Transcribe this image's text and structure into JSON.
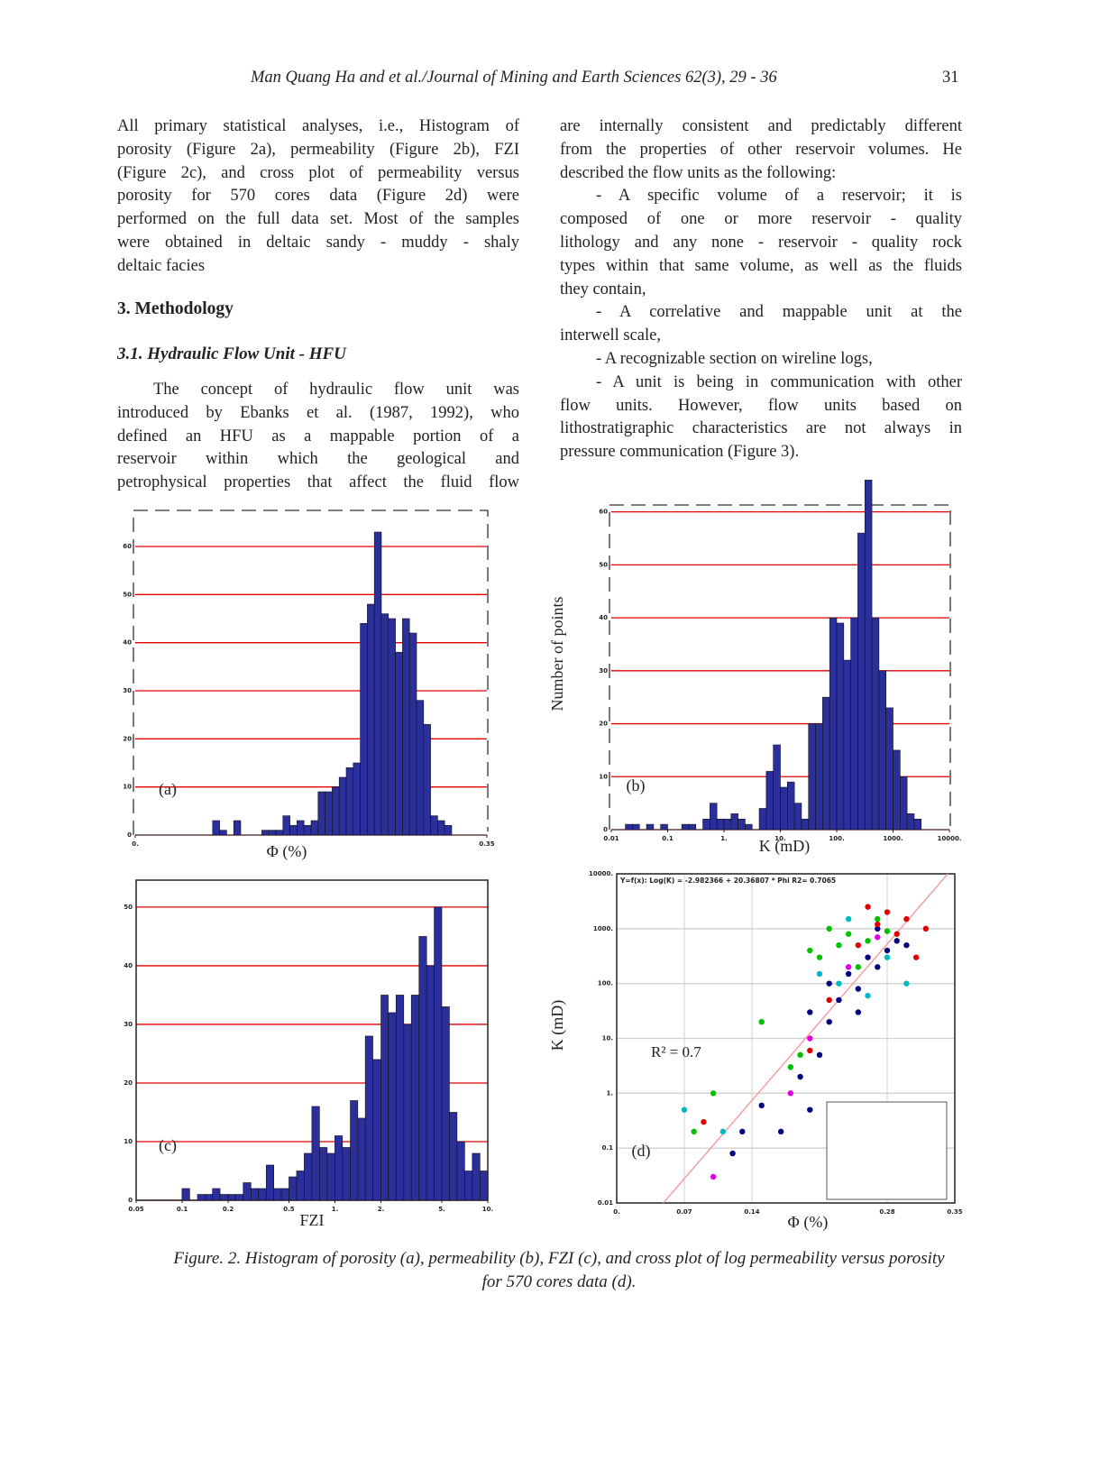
{
  "header": {
    "running_title": "Man Quang Ha and et al./Journal of Mining and Earth Sciences 62(3), 29 - 36",
    "page_number": "31"
  },
  "left_column": {
    "paragraphs": [
      {
        "lines": [
          "All primary statistical analyses, i.e., Histogram of",
          "porosity (Figure 2a), permeability (Figure 2b), FZI",
          "(Figure 2c), and cross plot of permeability versus",
          "porosity for 570 cores data (Figure 2d) were",
          "performed on the full data set. Most of the samples",
          "were obtained in deltaic sandy - muddy - shaly",
          "deltaic facies"
        ]
      },
      {
        "lines": [
          "The concept of hydraulic flow unit was",
          "introduced by Ebanks et al. (1987, 1992), who",
          "defined an HFU as a mappable portion of a",
          "reservoir within which the geological and",
          "petrophysical properties that affect the fluid flow"
        ]
      }
    ],
    "heading": "3. Methodology",
    "subheading": "3.1. Hydraulic Flow Unit - HFU"
  },
  "right_column": {
    "paragraphs": [
      {
        "lines": [
          "are internally consistent and predictably different",
          "from the properties of other reservoir volumes. He",
          "described the flow units as the following:"
        ]
      },
      {
        "lines": [
          "- A specific volume of a reservoir; it is",
          "composed of one or more reservoir - quality",
          "lithology and any none - reservoir - quality rock",
          "types within that same volume, as well as the fluids",
          "they contain,"
        ]
      },
      {
        "lines": [
          "- A correlative and mappable unit at the",
          "interwell scale,"
        ]
      },
      {
        "lines": [
          "- A recognizable section on wireline logs,"
        ]
      },
      {
        "lines": [
          "- A unit is being in communication with other",
          "flow units. However, flow units based on",
          "lithostratigraphic characteristics are not always in",
          "pressure communication (Figure 3)."
        ]
      }
    ]
  },
  "caption": [
    "Figure. 2. Histogram of porosity (a), permeability (b), FZI (c), and cross plot of log permeability versus porosity",
    "for 570 cores data (d)."
  ],
  "chart_data": [
    {
      "type": "histogram",
      "panel_label": "(a)",
      "x_label": "Φ (%)",
      "xscale": "linear",
      "bins": [
        0,
        0.007,
        0.014,
        0.021,
        0.028,
        0.035,
        0.042,
        0.049,
        0.056,
        0.063,
        0.07,
        0.077,
        0.084,
        0.091,
        0.098,
        0.105,
        0.112,
        0.119,
        0.126,
        0.133,
        0.14,
        0.147,
        0.154,
        0.161,
        0.168,
        0.175,
        0.182,
        0.189,
        0.196,
        0.203,
        0.21,
        0.217,
        0.224,
        0.231,
        0.238,
        0.245,
        0.252,
        0.259,
        0.266,
        0.273,
        0.28,
        0.287,
        0.294,
        0.301,
        0.308,
        0.315,
        0.322,
        0.329,
        0.336,
        0.343,
        0.35
      ],
      "values": [
        0,
        0,
        0,
        0,
        0,
        0,
        0,
        0,
        0,
        0,
        0,
        3,
        1,
        0,
        3,
        0,
        0,
        0,
        1,
        1,
        1,
        4,
        2,
        3,
        2,
        3,
        9,
        9,
        10,
        12,
        14,
        15,
        44,
        48,
        63,
        46,
        45,
        38,
        45,
        42,
        28,
        23,
        4,
        3,
        2,
        0,
        0,
        0,
        0,
        0
      ],
      "color": "#2a2f9c",
      "grid_color": "#e00000",
      "xlim": [
        0,
        0.35
      ],
      "ylim": [
        0,
        67.5
      ],
      "xticks": [
        {
          "value": 0,
          "label": "0."
        },
        0.35
      ],
      "yticks": [
        0,
        10,
        20,
        30,
        40,
        50,
        60
      ]
    },
    {
      "type": "histogram",
      "panel_label": "(b)",
      "x_label": "K (mD)",
      "y_label": "Number of points",
      "xscale": "log",
      "bins": [
        0.01,
        0.01334,
        0.01778,
        0.02371,
        0.03162,
        0.04217,
        0.05623,
        0.07499,
        0.1,
        0.1334,
        0.1778,
        0.2371,
        0.3162,
        0.4217,
        0.5623,
        0.7499,
        1,
        1.334,
        1.778,
        2.371,
        3.162,
        4.217,
        5.623,
        7.499,
        10,
        13.34,
        17.78,
        23.71,
        31.62,
        42.17,
        56.23,
        74.99,
        100,
        133.4,
        177.8,
        237.1,
        316.2,
        421.7,
        562.3,
        749.9,
        1000,
        1334,
        1778,
        2371,
        3162,
        4217,
        5623,
        7499,
        10000
      ],
      "values": [
        0,
        0,
        1,
        1,
        0,
        1,
        0,
        1,
        0,
        0,
        1,
        1,
        0,
        2,
        5,
        2,
        2,
        3,
        2,
        1,
        0,
        4,
        11,
        16,
        8,
        9,
        5,
        2,
        20,
        20,
        25,
        40,
        39,
        32,
        40,
        56,
        66,
        40,
        30,
        23,
        15,
        10,
        3,
        2,
        0,
        0,
        0,
        0
      ],
      "color": "#2a2f9c",
      "grid_color": "#e00000",
      "xlim": [
        0.01,
        10000
      ],
      "ylim": [
        0,
        61.3
      ],
      "xticks": [
        0.01,
        0.1,
        {
          "value": 1,
          "label": "1."
        },
        {
          "value": 10,
          "label": "10."
        },
        {
          "value": 100,
          "label": "100."
        },
        {
          "value": 1000,
          "label": "1000."
        },
        {
          "value": 10000,
          "label": "10000."
        }
      ],
      "yticks": [
        0,
        10,
        20,
        30,
        40,
        50,
        60
      ]
    },
    {
      "type": "histogram",
      "panel_label": "(c)",
      "x_label": "FZI",
      "xscale": "log",
      "bins": [
        0.05,
        0.0561,
        0.0629,
        0.0706,
        0.0792,
        0.0889,
        0.0998,
        0.112,
        0.126,
        0.141,
        0.158,
        0.177,
        0.2,
        0.223,
        0.251,
        0.282,
        0.316,
        0.355,
        0.398,
        0.446,
        0.5,
        0.561,
        0.629,
        0.706,
        0.792,
        0.889,
        0.998,
        1.12,
        1.26,
        1.41,
        1.58,
        1.77,
        2,
        2.23,
        2.51,
        2.82,
        3.16,
        3.55,
        3.98,
        4.46,
        5,
        5.61,
        6.29,
        7.06,
        7.92,
        8.89,
        9.98
      ],
      "values": [
        0,
        0,
        0,
        0,
        0,
        0,
        2,
        0,
        1,
        1,
        2,
        1,
        1,
        1,
        3,
        2,
        2,
        6,
        2,
        2,
        4,
        5,
        8,
        16,
        9,
        8,
        11,
        9,
        17,
        14,
        28,
        24,
        35,
        32,
        35,
        30,
        35,
        45,
        40,
        50,
        33,
        15,
        10,
        5,
        8,
        5
      ],
      "color": "#2a2f9c",
      "grid_color": "#e00000",
      "xlim": [
        0.05,
        10
      ],
      "ylim": [
        0,
        54.6
      ],
      "xticks": [
        0.05,
        0.1,
        0.2,
        0.5,
        {
          "value": 1,
          "label": "1."
        },
        {
          "value": 2,
          "label": "2."
        },
        {
          "value": 5,
          "label": "5."
        },
        {
          "value": 10,
          "label": "10."
        }
      ],
      "yticks": [
        0,
        10,
        20,
        30,
        40,
        50
      ]
    },
    {
      "type": "scatter",
      "panel_label": "(d)",
      "x_label": "Φ (%)",
      "y_label": "K (mD)",
      "xscale": "linear",
      "yscale": "log",
      "annotations": [
        "R² = 0.7",
        "Y=f(x): Log(K) = -2.982366 + 20.36807 * Phi   R2= 0.7065"
      ],
      "fit": {
        "intercept": -2.982366,
        "slope": 20.36807,
        "color": "#f4a0a0"
      },
      "grid_color": "#d0d0d0",
      "series": [
        {
          "color": "#000080",
          "x": [
            0.17,
            0.19,
            0.2,
            0.21,
            0.22,
            0.23,
            0.24,
            0.25,
            0.26,
            0.27,
            0.28,
            0.29,
            0.3,
            0.22,
            0.25,
            0.27,
            0.12,
            0.13,
            0.15,
            0.2
          ],
          "y": [
            0.2,
            2,
            0.5,
            5,
            20,
            50,
            150,
            80,
            300,
            200,
            400,
            600,
            500,
            100,
            30,
            1000,
            0.08,
            0.2,
            0.6,
            30
          ]
        },
        {
          "color": "#00c000",
          "x": [
            0.1,
            0.15,
            0.18,
            0.2,
            0.21,
            0.22,
            0.23,
            0.24,
            0.25,
            0.26,
            0.27,
            0.28,
            0.19,
            0.08
          ],
          "y": [
            1,
            20,
            3,
            400,
            300,
            1000,
            500,
            800,
            200,
            600,
            1500,
            900,
            5,
            0.2
          ]
        },
        {
          "color": "#e00000",
          "x": [
            0.09,
            0.2,
            0.22,
            0.25,
            0.27,
            0.28,
            0.29,
            0.3,
            0.31,
            0.32,
            0.26
          ],
          "y": [
            0.3,
            6,
            50,
            500,
            1200,
            2000,
            800,
            1500,
            300,
            1000,
            2500
          ]
        },
        {
          "color": "#00b8c0",
          "x": [
            0.07,
            0.11,
            0.23,
            0.26,
            0.28,
            0.3,
            0.21,
            0.24
          ],
          "y": [
            0.5,
            0.2,
            100,
            60,
            300,
            100,
            150,
            1500
          ]
        },
        {
          "color": "#e000e0",
          "x": [
            0.1,
            0.18,
            0.2,
            0.24,
            0.27
          ],
          "y": [
            0.03,
            1,
            10,
            200,
            700
          ]
        }
      ],
      "xlim": [
        0,
        0.35
      ],
      "ylim": [
        0.01,
        10000
      ],
      "xticks": [
        {
          "value": 0,
          "label": "0."
        },
        0.07,
        0.14,
        0.28,
        0.35
      ],
      "yticks": [
        0.01,
        0.1,
        {
          "value": 1,
          "label": "1."
        },
        {
          "value": 10,
          "label": "10."
        },
        {
          "value": 100,
          "label": "100."
        },
        {
          "value": 1000,
          "label": "1000."
        },
        {
          "value": 10000,
          "label": "10000."
        }
      ]
    }
  ]
}
